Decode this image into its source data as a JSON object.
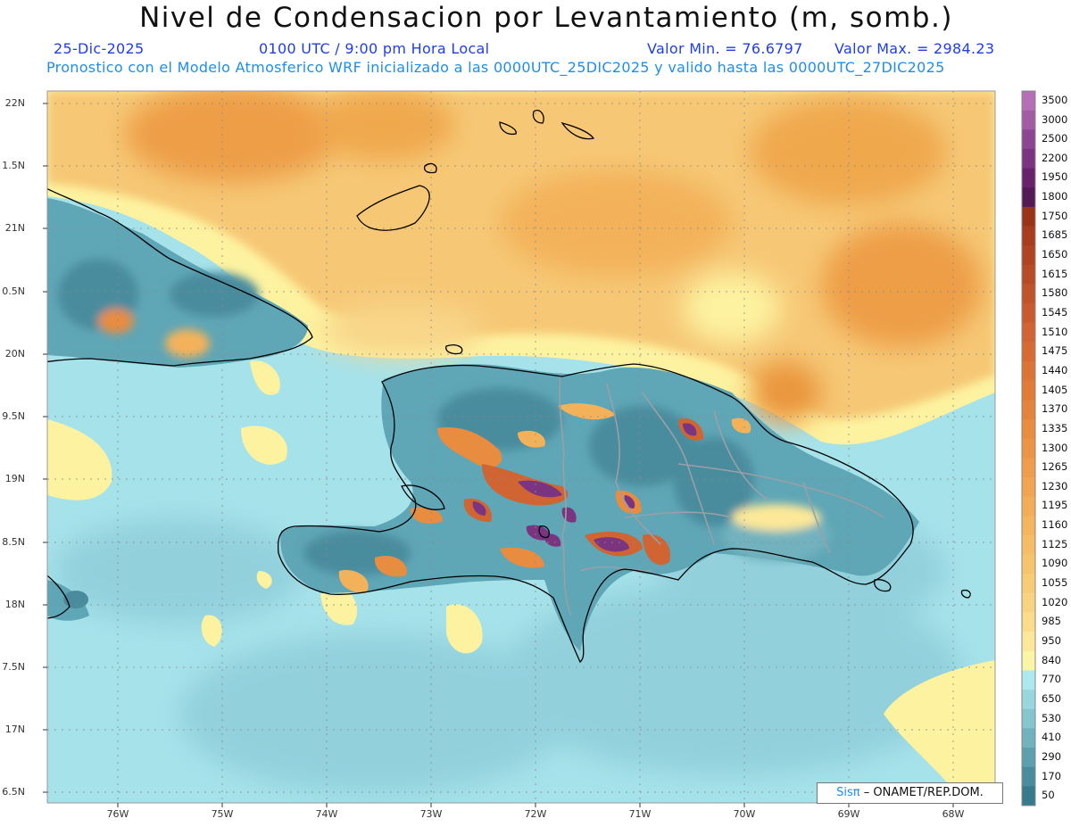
{
  "title": "Nivel de Condensacion por Levantamiento (m, somb.)",
  "date": "25-Dic-2025",
  "time": "0100 UTC / 9:00 pm Hora Local",
  "value_min": "Valor Min. = 76.6797",
  "value_max": "Valor Max. = 2984.23",
  "description": "Pronostico con el Modelo Atmosferico WRF inicializado a las 0000UTC_25DIC2025 y valido hasta las  0000UTC_27DIC2025",
  "credit": {
    "logo": "Sisπ",
    "text": "– ONAMET/REP.DOM."
  },
  "lat_labels": [
    "22N",
    "1.5N",
    "21N",
    "0.5N",
    "20N",
    "9.5N",
    "19N",
    "8.5N",
    "18N",
    "7.5N",
    "17N",
    "6.5N"
  ],
  "lon_labels": [
    "76W",
    "75W",
    "74W",
    "73W",
    "72W",
    "71W",
    "70W",
    "69W",
    "68W"
  ],
  "colorbar_levels": [
    {
      "value": "3500",
      "color": "#b46fb6"
    },
    {
      "value": "3000",
      "color": "#a25ba4"
    },
    {
      "value": "2500",
      "color": "#8c4590"
    },
    {
      "value": "2200",
      "color": "#7a3480"
    },
    {
      "value": "1950",
      "color": "#68226c"
    },
    {
      "value": "1800",
      "color": "#541a55"
    },
    {
      "value": "1750",
      "color": "#9a3418"
    },
    {
      "value": "1685",
      "color": "#a83c1e"
    },
    {
      "value": "1650",
      "color": "#b04422"
    },
    {
      "value": "1615",
      "color": "#b84c26"
    },
    {
      "value": "1580",
      "color": "#c0542a"
    },
    {
      "value": "1545",
      "color": "#c85c2e"
    },
    {
      "value": "1510",
      "color": "#d06432"
    },
    {
      "value": "1475",
      "color": "#d66c34"
    },
    {
      "value": "1440",
      "color": "#dc7436"
    },
    {
      "value": "1405",
      "color": "#e07c38"
    },
    {
      "value": "1370",
      "color": "#e4843c"
    },
    {
      "value": "1335",
      "color": "#e88c40"
    },
    {
      "value": "1300",
      "color": "#ec9446"
    },
    {
      "value": "1265",
      "color": "#ef9c4c"
    },
    {
      "value": "1230",
      "color": "#f1a452"
    },
    {
      "value": "1195",
      "color": "#f3ac58"
    },
    {
      "value": "1160",
      "color": "#f5b45e"
    },
    {
      "value": "1125",
      "color": "#f6bc66"
    },
    {
      "value": "1090",
      "color": "#f7c46e"
    },
    {
      "value": "1055",
      "color": "#f8cc76"
    },
    {
      "value": "1020",
      "color": "#f9d480"
    },
    {
      "value": "985",
      "color": "#fadc8a"
    },
    {
      "value": "950",
      "color": "#fce898"
    },
    {
      "value": "840",
      "color": "#fdf5a6"
    },
    {
      "value": "770",
      "color": "#ace8ee"
    },
    {
      "value": "650",
      "color": "#99d6de"
    },
    {
      "value": "530",
      "color": "#86c4ce"
    },
    {
      "value": "410",
      "color": "#72b2be"
    },
    {
      "value": "290",
      "color": "#5e9fae"
    },
    {
      "value": "170",
      "color": "#4a8c9e"
    },
    {
      "value": "50",
      "color": "#377a8e"
    }
  ],
  "colors": {
    "ocean_light": "#a6e2ea",
    "ocean_mid": "#8fcfda",
    "land_teal": "#5fa6b6",
    "dry_yellow": "#fdf2a0",
    "high_orange": "#f0b254",
    "peak_purple": "#7a3480"
  }
}
